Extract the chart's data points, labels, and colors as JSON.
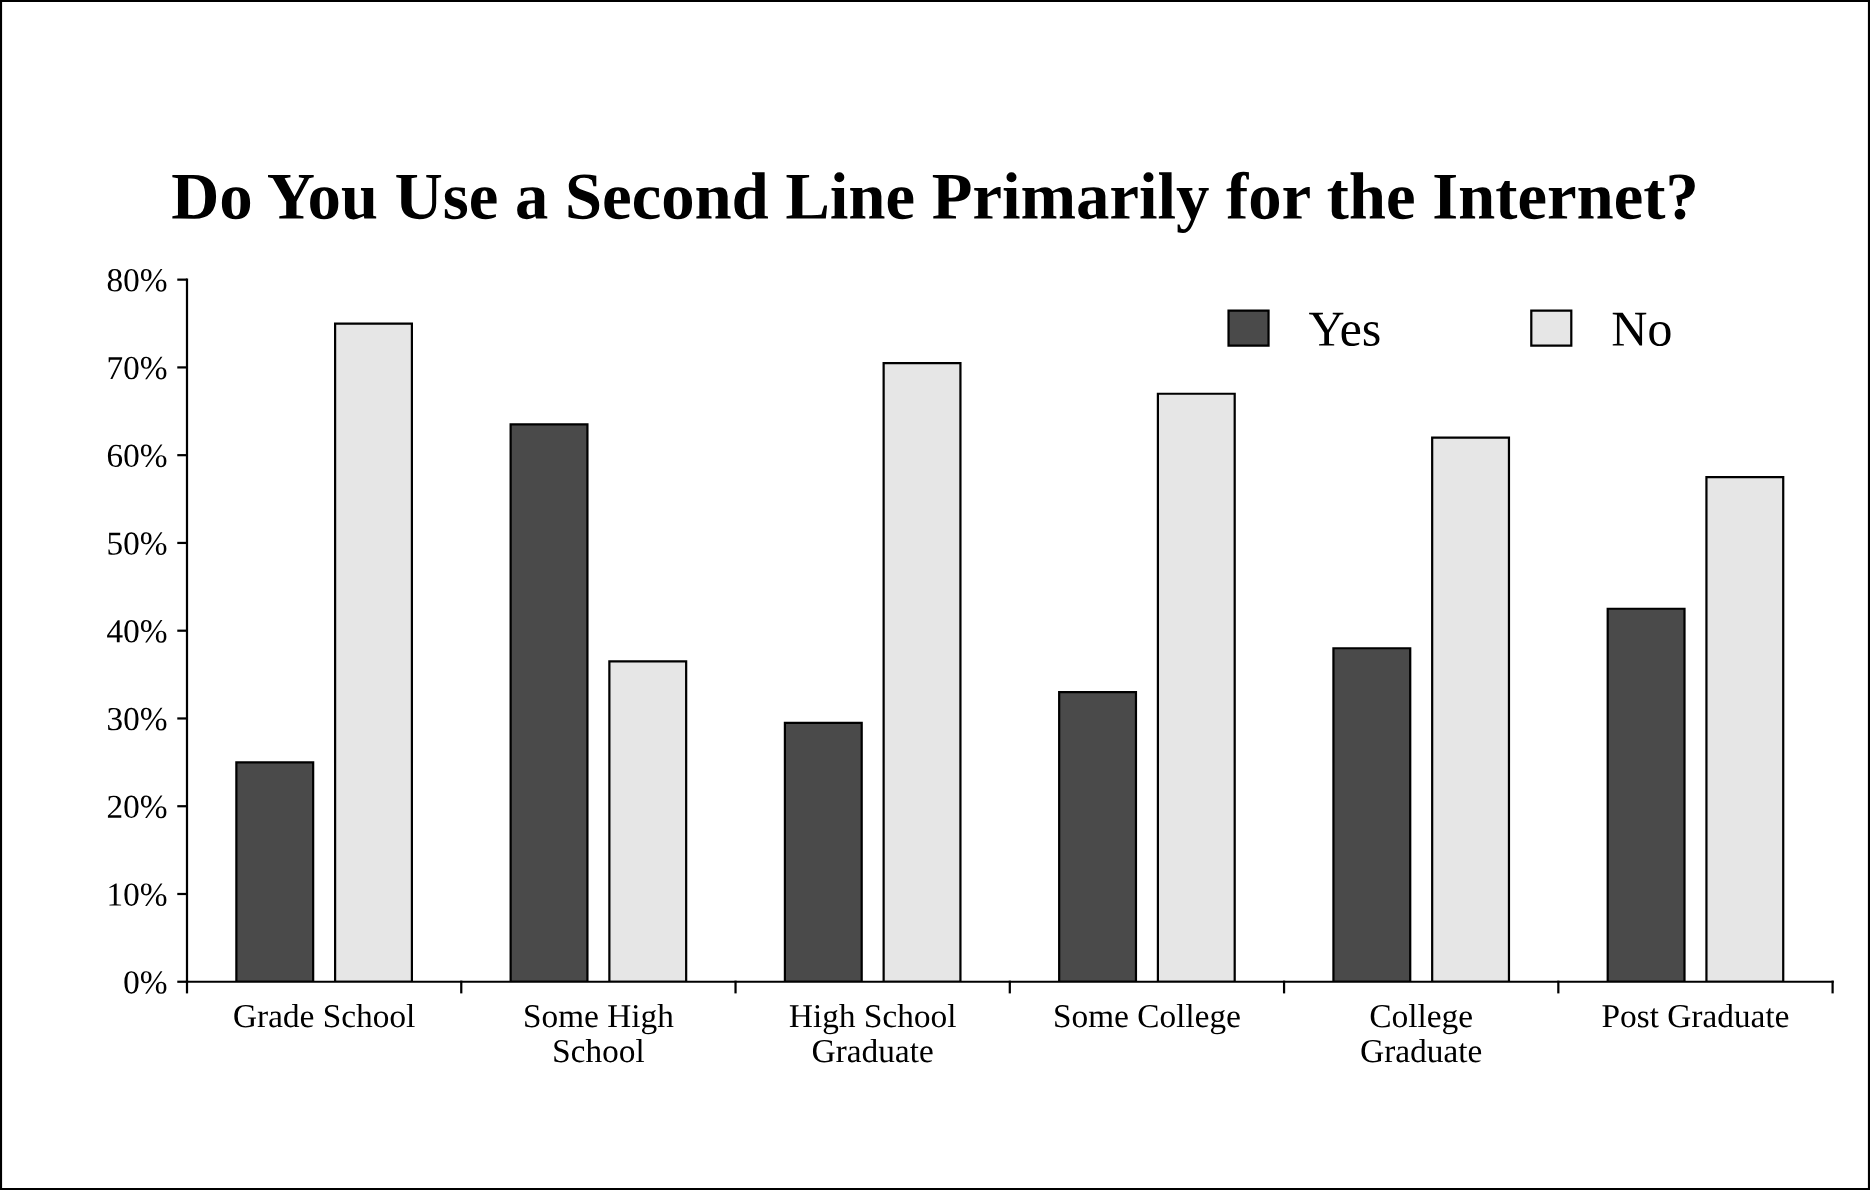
{
  "chart_data": {
    "type": "bar",
    "title": "Do You Use a Second Line Primarily for the Internet?",
    "categories": [
      "Grade School",
      "Some High\nSchool",
      "High School\nGraduate",
      "Some College",
      "College\nGraduate",
      "Post Graduate"
    ],
    "series": [
      {
        "name": "Yes",
        "color": "#4a4a4a",
        "values": [
          25,
          63.5,
          29.5,
          33,
          38,
          42.5
        ]
      },
      {
        "name": "No",
        "color": "#e6e6e6",
        "values": [
          75,
          36.5,
          70.5,
          67,
          62,
          57.5
        ]
      }
    ],
    "ylim": [
      0,
      80
    ],
    "yticks": [
      {
        "value": 0,
        "label": "0%"
      },
      {
        "value": 10,
        "label": "10%"
      },
      {
        "value": 20,
        "label": "20%"
      },
      {
        "value": 30,
        "label": "30%"
      },
      {
        "value": 40,
        "label": "40%"
      },
      {
        "value": 50,
        "label": "50%"
      },
      {
        "value": 60,
        "label": "60%"
      },
      {
        "value": 70,
        "label": "70%"
      },
      {
        "value": 80,
        "label": "80%"
      }
    ],
    "grid": false,
    "legend": "top right"
  }
}
